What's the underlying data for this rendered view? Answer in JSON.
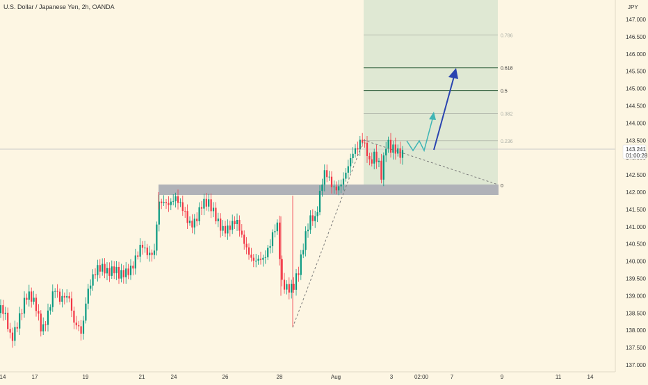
{
  "header": {
    "symbol_title": "U.S. Dollar / Japanese Yen, 2h, OANDA",
    "currency": "JPY"
  },
  "price_axis": {
    "ticks": [
      "147.000",
      "146.500",
      "146.000",
      "145.500",
      "145.000",
      "144.500",
      "144.000",
      "143.500",
      "143.000",
      "142.500",
      "142.000",
      "141.500",
      "141.000",
      "140.500",
      "140.000",
      "139.500",
      "139.000",
      "138.500",
      "138.000",
      "137.500",
      "137.000"
    ]
  },
  "current_price": {
    "value": "143.241",
    "countdown": "01:00:28",
    "color": "#f23645"
  },
  "time_axis": {
    "labels": [
      "14",
      "17",
      "19",
      "21",
      "24",
      "26",
      "28",
      "Aug",
      "3",
      "02:00",
      "7",
      "9",
      "11",
      "14"
    ]
  },
  "fib_levels": [
    {
      "label": "0.786",
      "value": 146.55,
      "color": "#b7bdb0"
    },
    {
      "label": "0.618",
      "value": 145.6,
      "color": "#2e5d3a"
    },
    {
      "label": "0.5",
      "value": 144.94,
      "color": "#2e5d3a"
    },
    {
      "label": "0.382",
      "value": 144.28,
      "color": "#b7bdb0"
    },
    {
      "label": "0.236",
      "value": 143.49,
      "color": "#b7bdb0"
    },
    {
      "label": "0",
      "value": 142.2,
      "color": "#2e5d3a"
    }
  ],
  "support_zone": {
    "top": 142.2,
    "bottom": 141.9,
    "color": "#b0b2b8"
  },
  "colors": {
    "up_candle": "#089981",
    "down_candle": "#f23645",
    "fib_fill": "#dfe8d3",
    "projection_teal": "#3fb5b5",
    "projection_blue": "#2a44b0",
    "background": "#fdf6e3"
  },
  "chart_data": {
    "type": "candlestick",
    "title": "U.S. Dollar / Japanese Yen, 2h, OANDA",
    "ylabel": "JPY",
    "ylim": [
      136.9,
      147.4
    ],
    "x_tick_labels": [
      "14",
      "17",
      "19",
      "21",
      "24",
      "26",
      "28",
      "Aug",
      "3",
      "02:00",
      "7",
      "9",
      "11",
      "14"
    ],
    "waypoints": [
      [
        0,
        138.5
      ],
      [
        8,
        138.3
      ],
      [
        16,
        137.8
      ],
      [
        22,
        138.2
      ],
      [
        30,
        138.6
      ],
      [
        38,
        138.9
      ],
      [
        44,
        138.8
      ],
      [
        52,
        138.6
      ],
      [
        60,
        138.1
      ],
      [
        70,
        138.7
      ],
      [
        78,
        139.2
      ],
      [
        86,
        138.7
      ],
      [
        94,
        138.9
      ],
      [
        100,
        139.0
      ],
      [
        106,
        138.4
      ],
      [
        112,
        138.3
      ],
      [
        118,
        137.9
      ],
      [
        124,
        138.8
      ],
      [
        132,
        139.3
      ],
      [
        140,
        139.8
      ],
      [
        148,
        140.0
      ],
      [
        156,
        139.8
      ],
      [
        164,
        139.7
      ],
      [
        172,
        139.4
      ],
      [
        180,
        139.6
      ],
      [
        188,
        139.9
      ],
      [
        196,
        140.3
      ],
      [
        204,
        140.5
      ],
      [
        210,
        140.1
      ],
      [
        216,
        140.0
      ],
      [
        222,
        140.2
      ],
      [
        228,
        141.8
      ],
      [
        236,
        141.9
      ],
      [
        244,
        141.7
      ],
      [
        252,
        141.7
      ],
      [
        258,
        141.5
      ],
      [
        264,
        141.4
      ],
      [
        272,
        141.2
      ],
      [
        280,
        141.3
      ],
      [
        290,
        141.6
      ],
      [
        300,
        141.5
      ],
      [
        310,
        141.3
      ],
      [
        320,
        141.1
      ],
      [
        330,
        141.0
      ],
      [
        340,
        141.0
      ],
      [
        348,
        140.6
      ],
      [
        356,
        140.4
      ],
      [
        364,
        140.2
      ],
      [
        372,
        140.1
      ],
      [
        380,
        139.9
      ],
      [
        388,
        140.3
      ],
      [
        394,
        140.9
      ],
      [
        400,
        141.2
      ],
      [
        404,
        139.6
      ],
      [
        410,
        139.4
      ],
      [
        416,
        139.2
      ],
      [
        422,
        139.1
      ],
      [
        430,
        139.6
      ],
      [
        436,
        140.4
      ],
      [
        442,
        141.1
      ],
      [
        448,
        141.5
      ],
      [
        454,
        141.3
      ],
      [
        460,
        141.9
      ],
      [
        466,
        142.4
      ],
      [
        472,
        142.3
      ],
      [
        478,
        142.1
      ],
      [
        484,
        142.2
      ],
      [
        490,
        142.4
      ],
      [
        496,
        142.6
      ],
      [
        502,
        142.8
      ],
      [
        508,
        143.0
      ],
      [
        514,
        143.1
      ],
      [
        520,
        143.5
      ],
      [
        526,
        143.4
      ],
      [
        532,
        143.0
      ],
      [
        538,
        143.2
      ],
      [
        544,
        142.9
      ],
      [
        548,
        142.3
      ],
      [
        552,
        142.8
      ],
      [
        556,
        143.3
      ],
      [
        562,
        143.2
      ],
      [
        568,
        143.35
      ],
      [
        574,
        143.3
      ],
      [
        580,
        143.25
      ]
    ]
  }
}
